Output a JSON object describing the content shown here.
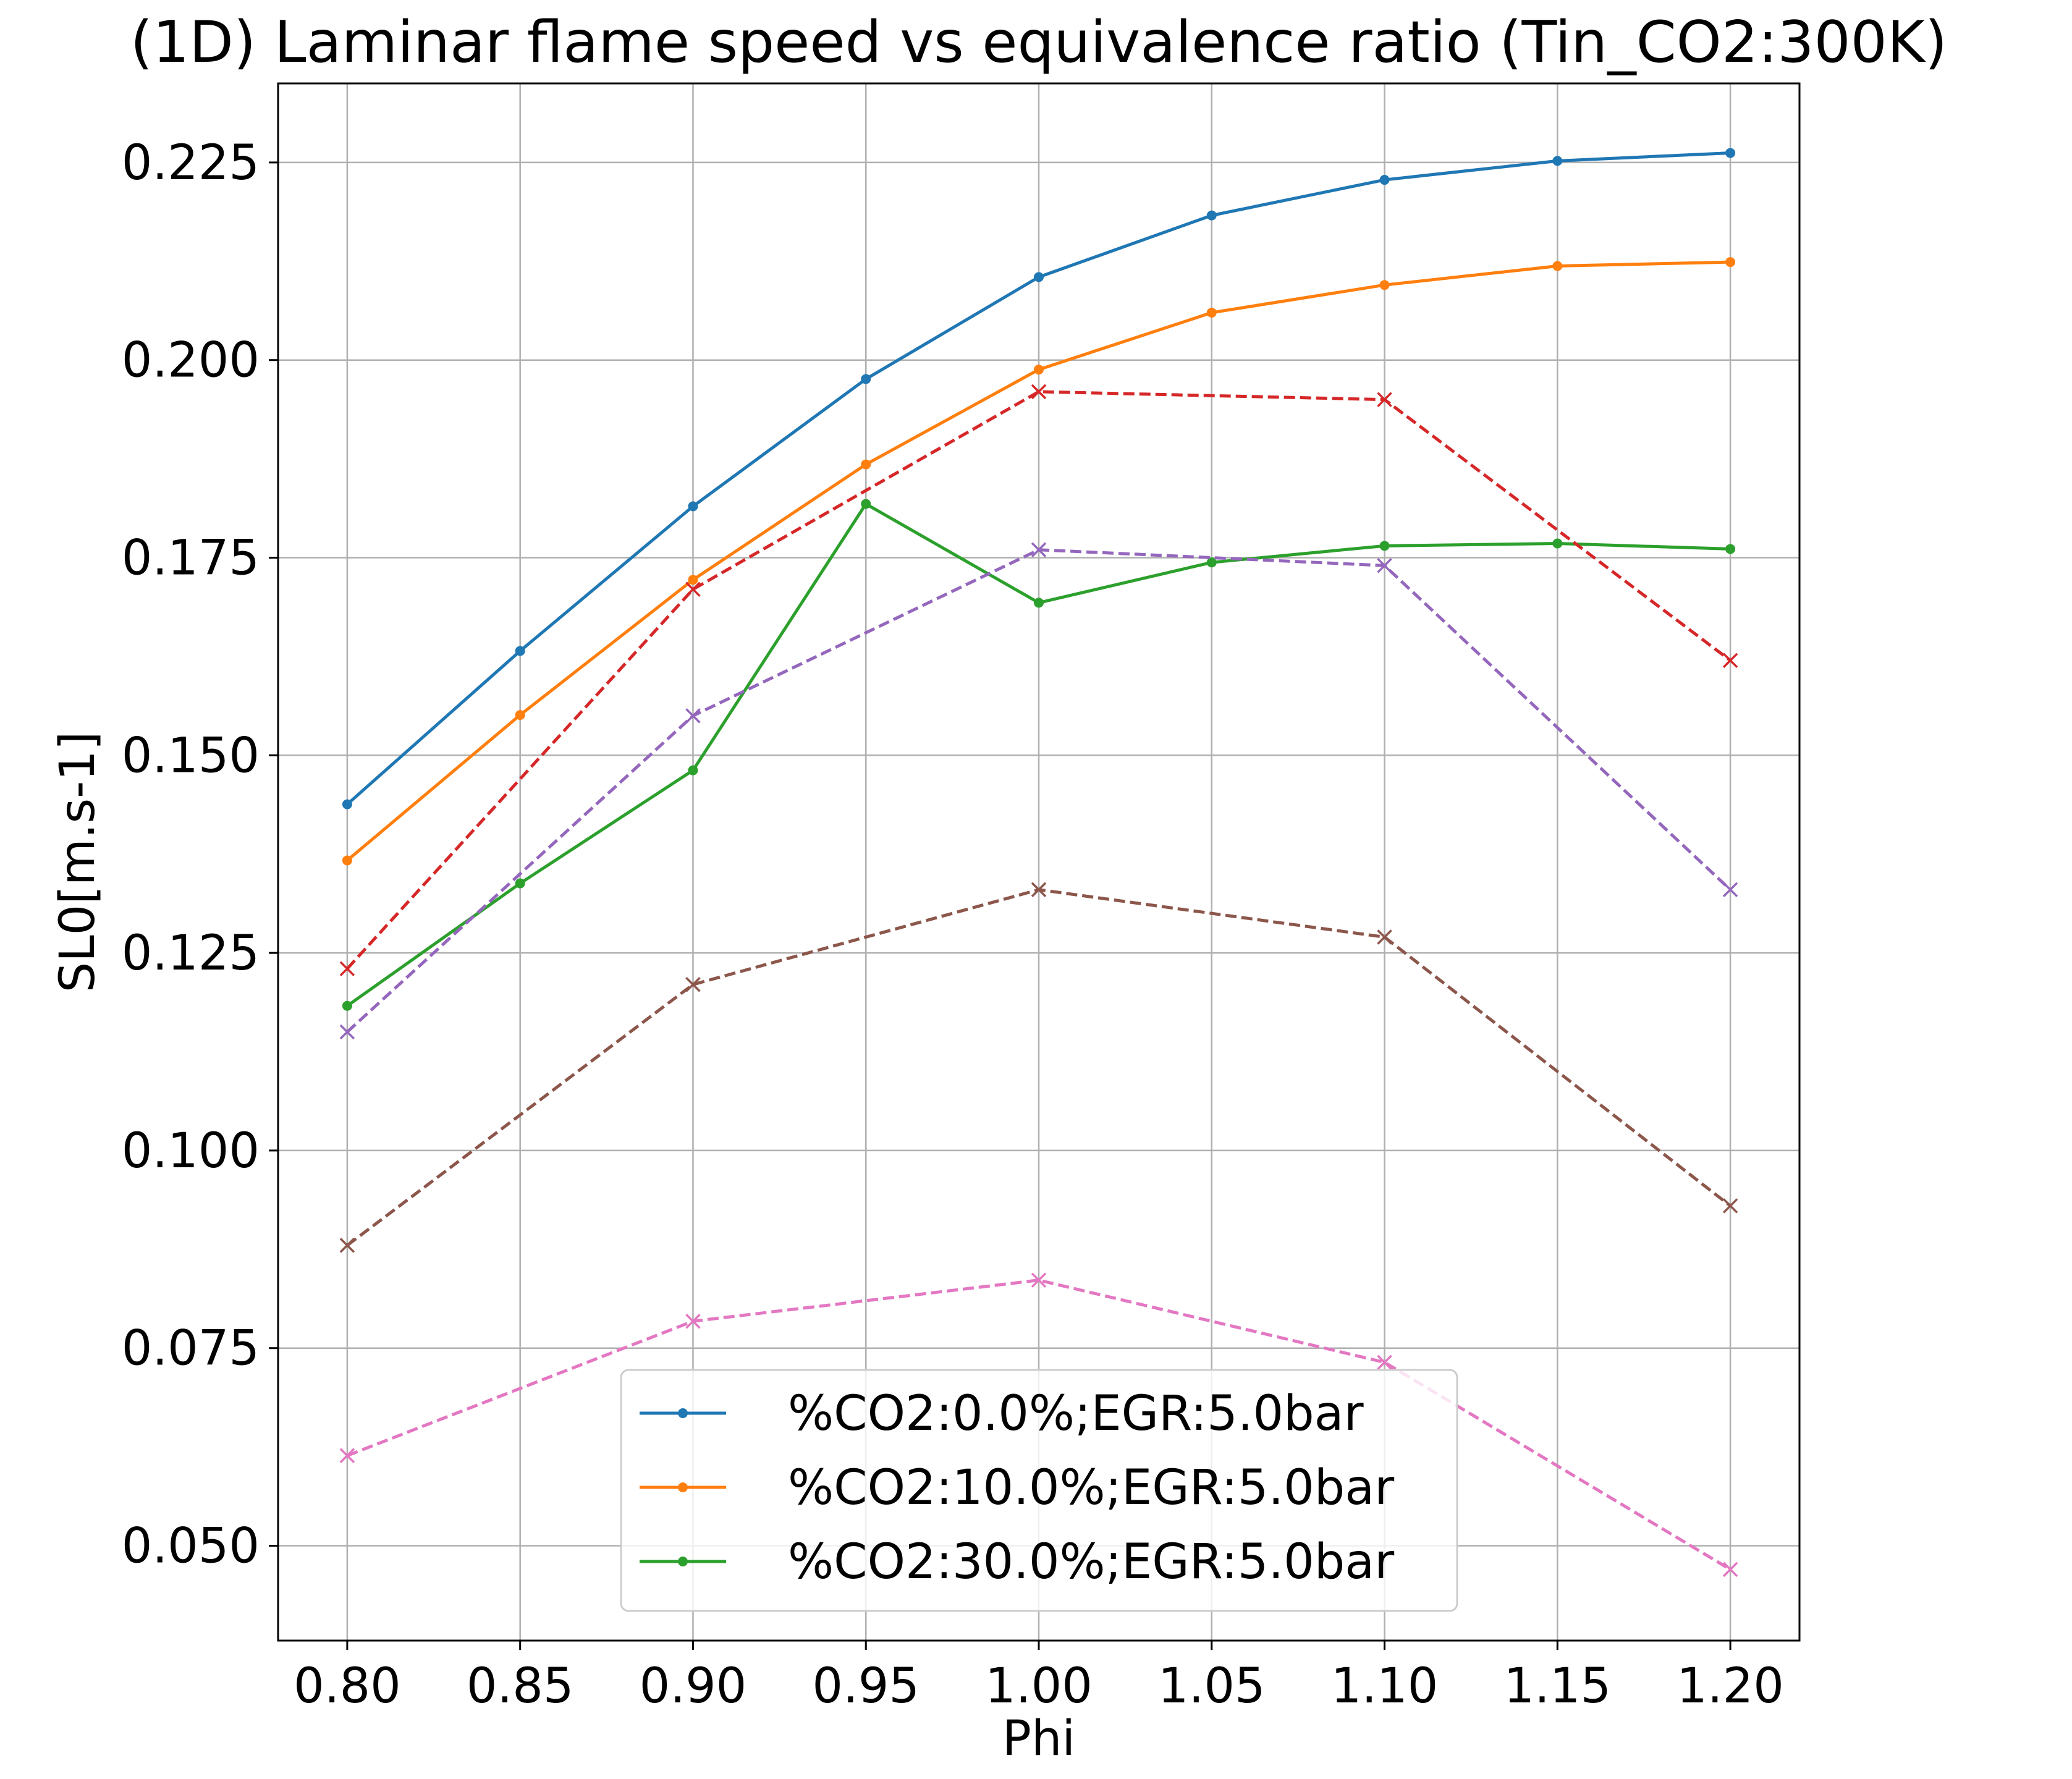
{
  "chart_data": {
    "type": "line",
    "title": "(1D) Laminar flame speed vs equivalence ratio (Tin_CO2:300K)",
    "xlabel": "Phi",
    "ylabel": "SL0[m.s-1]",
    "xlim": [
      0.78,
      1.22
    ],
    "ylim": [
      0.038,
      0.235
    ],
    "xticks": [
      0.8,
      0.85,
      0.9,
      0.95,
      1.0,
      1.05,
      1.1,
      1.15,
      1.2
    ],
    "xtick_labels": [
      "0.80",
      "0.85",
      "0.90",
      "0.95",
      "1.00",
      "1.05",
      "1.10",
      "1.15",
      "1.20"
    ],
    "yticks": [
      0.05,
      0.075,
      0.1,
      0.125,
      0.15,
      0.175,
      0.2,
      0.225
    ],
    "ytick_labels": [
      "0.050",
      "0.075",
      "0.100",
      "0.125",
      "0.150",
      "0.175",
      "0.200",
      "0.225"
    ],
    "grid": true,
    "legend_position": "lower-center",
    "series": [
      {
        "name": "%CO2:0.0%;EGR:5.0bar",
        "color": "#1f77b4",
        "style": "solid",
        "marker": "dot",
        "in_legend": true,
        "x": [
          0.8,
          0.85,
          0.9,
          0.95,
          1.0,
          1.05,
          1.1,
          1.15,
          1.2
        ],
        "y": [
          0.1438,
          0.1632,
          0.1815,
          0.1976,
          0.2105,
          0.2183,
          0.2228,
          0.2252,
          0.2262
        ]
      },
      {
        "name": "%CO2:10.0%;EGR:5.0bar",
        "color": "#ff7f0e",
        "style": "solid",
        "marker": "dot",
        "in_legend": true,
        "x": [
          0.8,
          0.85,
          0.9,
          0.95,
          1.0,
          1.05,
          1.1,
          1.15,
          1.2
        ],
        "y": [
          0.1367,
          0.1551,
          0.1722,
          0.1868,
          0.1988,
          0.206,
          0.2095,
          0.2119,
          0.2124
        ]
      },
      {
        "name": "%CO2:30.0%;EGR:5.0bar",
        "color": "#2ca02c",
        "style": "solid",
        "marker": "dot",
        "in_legend": true,
        "x": [
          0.8,
          0.85,
          0.9,
          0.95,
          1.0,
          1.05,
          1.1,
          1.15,
          1.2
        ],
        "y": [
          0.1183,
          0.1338,
          0.1481,
          0.1818,
          0.1693,
          0.1744,
          0.1765,
          0.1768,
          0.1761
        ]
      },
      {
        "color": "#d62728",
        "style": "dashed",
        "marker": "x",
        "in_legend": false,
        "x": [
          0.8,
          0.9,
          1.0,
          1.1,
          1.2
        ],
        "y": [
          0.123,
          0.171,
          0.196,
          0.195,
          0.162
        ]
      },
      {
        "color": "#9467bd",
        "style": "dashed",
        "marker": "x",
        "in_legend": false,
        "x": [
          0.8,
          0.9,
          1.0,
          1.1,
          1.2
        ],
        "y": [
          0.115,
          0.155,
          0.176,
          0.174,
          0.133
        ]
      },
      {
        "color": "#8c564b",
        "style": "dashed",
        "marker": "x",
        "in_legend": false,
        "x": [
          0.8,
          0.9,
          1.0,
          1.1,
          1.2
        ],
        "y": [
          0.088,
          0.121,
          0.133,
          0.127,
          0.093
        ]
      },
      {
        "color": "#e377c2",
        "style": "dashed",
        "marker": "x",
        "in_legend": false,
        "x": [
          0.8,
          0.9,
          1.0,
          1.1,
          1.2
        ],
        "y": [
          0.0614,
          0.0784,
          0.0836,
          0.0732,
          0.047
        ]
      }
    ]
  }
}
